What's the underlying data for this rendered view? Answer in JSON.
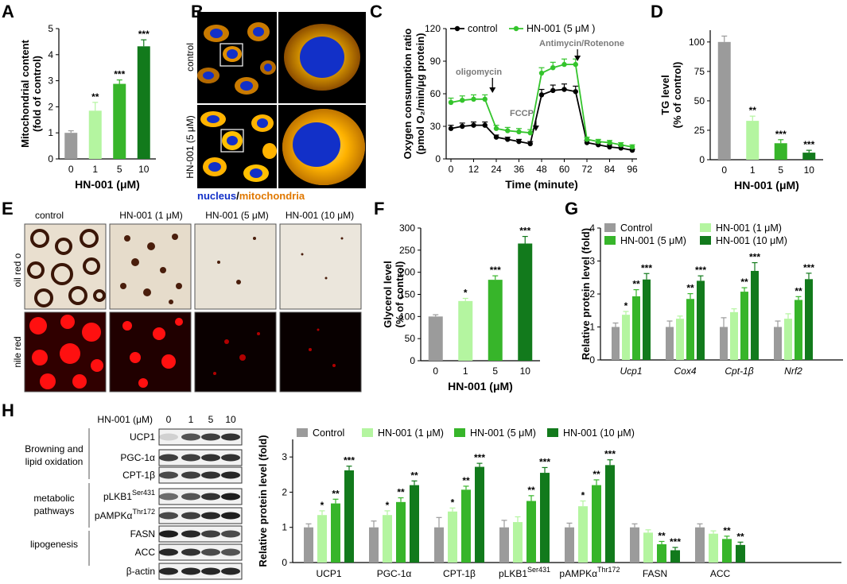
{
  "letters": [
    "A",
    "B",
    "C",
    "D",
    "E",
    "F",
    "G",
    "H"
  ],
  "colors": {
    "gray": "#9b9b9b",
    "c1": "#b4f5a0",
    "c5": "#37b52a",
    "c10": "#127a1c",
    "ctrl_line": "#000000",
    "hn_line": "#34c42c",
    "nucleus": "#1230c8",
    "mito": "#ff9c00"
  },
  "chart_data": [
    {
      "id": "A",
      "type": "bar",
      "categories": [
        "0",
        "1",
        "5",
        "10"
      ],
      "values": [
        1.0,
        1.85,
        2.88,
        4.32
      ],
      "errors": [
        0.08,
        0.32,
        0.15,
        0.25
      ],
      "stars": [
        "",
        "**",
        "***",
        "***"
      ],
      "ylabel": [
        "Mitochondrial content",
        "(fold of control)"
      ],
      "xlabel": "HN-001 (μM)",
      "ylim": [
        0,
        5
      ],
      "yticks": [
        "0",
        "1",
        "2",
        "3",
        "4",
        "5"
      ]
    },
    {
      "id": "C",
      "type": "line",
      "x": [
        0,
        6,
        12,
        18,
        24,
        30,
        36,
        42,
        48,
        54,
        60,
        66,
        72,
        78,
        84,
        90,
        96
      ],
      "series": [
        {
          "name": "control",
          "values": [
            28,
            30,
            31,
            31,
            20,
            18,
            16,
            14,
            59,
            63,
            64,
            62,
            15,
            13,
            11,
            10,
            8
          ],
          "errors": [
            3,
            3,
            3,
            3,
            2,
            2,
            2,
            2,
            5,
            5,
            5,
            5,
            2,
            2,
            2,
            2,
            1
          ]
        },
        {
          "name": "HN-001 (5 μM )",
          "values": [
            52,
            54,
            55,
            55,
            28,
            26,
            25,
            24,
            79,
            84,
            87,
            87,
            18,
            16,
            15,
            13,
            11
          ],
          "errors": [
            4,
            4,
            4,
            4,
            3,
            3,
            3,
            3,
            5,
            5,
            5,
            5,
            2,
            2,
            2,
            2,
            2
          ]
        }
      ],
      "ylabel": [
        "Oxygen consumption ratio",
        "(pmol O₂/min/μg protein)"
      ],
      "xlabel": "Time (minute)",
      "ylim": [
        0,
        120
      ],
      "yticks": [
        "0",
        "30",
        "60",
        "90",
        "120"
      ],
      "xticks": [
        "0",
        "12",
        "24",
        "36",
        "48",
        "60",
        "72",
        "84",
        "96"
      ],
      "annotations": [
        "oligomycin",
        "FCCP",
        "Antimycin/Rotenone"
      ]
    },
    {
      "id": "D",
      "type": "bar",
      "categories": [
        "0",
        "1",
        "5",
        "10"
      ],
      "values": [
        100,
        33,
        14,
        6
      ],
      "errors": [
        5,
        4,
        3,
        2
      ],
      "stars": [
        "",
        "**",
        "***",
        "***"
      ],
      "ylabel": [
        "TG level",
        "(% of control)"
      ],
      "xlabel": "HN-001 (μM)",
      "ylim": [
        0,
        110
      ],
      "yticks": [
        "0",
        "25",
        "50",
        "75",
        "100"
      ]
    },
    {
      "id": "F",
      "type": "bar",
      "categories": [
        "0",
        "1",
        "5",
        "10"
      ],
      "values": [
        100,
        135,
        183,
        265
      ],
      "errors": [
        4,
        6,
        9,
        16
      ],
      "stars": [
        "",
        "*",
        "***",
        "***"
      ],
      "ylabel": [
        "Glycerol level",
        "(% of control)"
      ],
      "xlabel": "HN-001 (μM)",
      "ylim": [
        0,
        300
      ],
      "yticks": [
        "0",
        "50",
        "100",
        "150",
        "200",
        "250",
        "300"
      ]
    },
    {
      "id": "G",
      "type": "bar",
      "categories": [
        "Ucp1",
        "Cox4",
        "Cpt-1β",
        "Nrf2"
      ],
      "series": [
        {
          "name": "Control",
          "values": [
            1.0,
            1.0,
            1.0,
            1.0
          ],
          "errors": [
            0.12,
            0.18,
            0.28,
            0.18
          ]
        },
        {
          "name": "HN-001 (1 μM)",
          "values": [
            1.37,
            1.25,
            1.45,
            1.25
          ],
          "errors": [
            0.1,
            0.08,
            0.1,
            0.15
          ]
        },
        {
          "name": "HN-001 (5 μM)",
          "values": [
            1.93,
            1.85,
            2.07,
            1.82
          ],
          "errors": [
            0.2,
            0.16,
            0.12,
            0.1
          ]
        },
        {
          "name": "HN-001 (10 μM)",
          "values": [
            2.44,
            2.4,
            2.7,
            2.45
          ],
          "errors": [
            0.18,
            0.15,
            0.25,
            0.18
          ]
        }
      ],
      "stars": [
        [
          "",
          "*",
          "**",
          "***"
        ],
        [
          "",
          "",
          "**",
          "***"
        ],
        [
          "",
          "",
          "**",
          "***"
        ],
        [
          "",
          "",
          "**",
          "***"
        ]
      ],
      "ylabel": "Relative protein level (fold)",
      "ylim": [
        0,
        4
      ],
      "yticks": [
        "0",
        "1",
        "2",
        "3",
        "4"
      ]
    },
    {
      "id": "H",
      "type": "bar",
      "categories": [
        "UCP1",
        "PGC-1α",
        "CPT-1β",
        "pLKB1",
        "pAMPKα",
        "FASN",
        "ACC"
      ],
      "category_superscripts": [
        "",
        "",
        "",
        "Ser431",
        "Thr172",
        "",
        ""
      ],
      "series": [
        {
          "name": "Control",
          "values": [
            1.0,
            1.0,
            1.0,
            1.0,
            1.0,
            1.0,
            1.0
          ],
          "errors": [
            0.1,
            0.18,
            0.28,
            0.2,
            0.12,
            0.1,
            0.1
          ]
        },
        {
          "name": "HN-001 (1 μM)",
          "values": [
            1.35,
            1.35,
            1.45,
            1.15,
            1.6,
            0.85,
            0.82
          ]
        },
        {
          "name": "HN-001 (5 μM)",
          "values": [
            1.68,
            1.72,
            2.07,
            1.75,
            2.2,
            0.52,
            0.67
          ]
        },
        {
          "name": "HN-001 (10 μM)",
          "values": [
            2.62,
            2.2,
            2.72,
            2.55,
            2.77,
            0.35,
            0.5
          ]
        }
      ],
      "err_small": [
        0.12,
        0.12,
        0.1,
        0.15,
        0.15,
        0.08,
        0.08
      ],
      "stars": [
        [
          "",
          "*",
          "**",
          "***"
        ],
        [
          "",
          "*",
          "**",
          "**"
        ],
        [
          "",
          "*",
          "**",
          "***"
        ],
        [
          "",
          "",
          "**",
          "***"
        ],
        [
          "",
          "*",
          "**",
          "***"
        ],
        [
          "",
          "",
          "**",
          "***"
        ],
        [
          "",
          "",
          "**",
          "**"
        ]
      ],
      "ylabel": "Relative protein level (fold)",
      "ylim": [
        0,
        3.5
      ],
      "yticks": [
        "0",
        "1",
        "2",
        "3"
      ]
    }
  ],
  "panel_b": {
    "row_labels": [
      "control",
      "HN-001 (5 μM)"
    ],
    "caption_nucleus": "nucleus",
    "caption_sep": "/",
    "caption_mito": "mitochondria"
  },
  "panel_e": {
    "col_labels": [
      "control",
      "HN-001 (1 μM)",
      "HN-001 (5 μM)",
      "HN-001 (10 μM)"
    ],
    "row_labels": [
      "oil red o",
      "nile red"
    ]
  },
  "panel_h_blot": {
    "header": "HN-001 (μM)",
    "doses": [
      "0",
      "1",
      "5",
      "10"
    ],
    "proteins": [
      "UCP1",
      "PGC-1α",
      "CPT-1β",
      "pLKB1",
      "pAMPKα",
      "FASN",
      "ACC",
      "β-actin"
    ],
    "protein_sups": [
      "",
      "",
      "",
      "Ser431",
      "Thr172",
      "",
      "",
      ""
    ],
    "groups": [
      [
        "Browning and",
        "lipid oxidation"
      ],
      [
        "metabolic",
        "pathways"
      ],
      [
        "lipogenesis"
      ]
    ]
  }
}
